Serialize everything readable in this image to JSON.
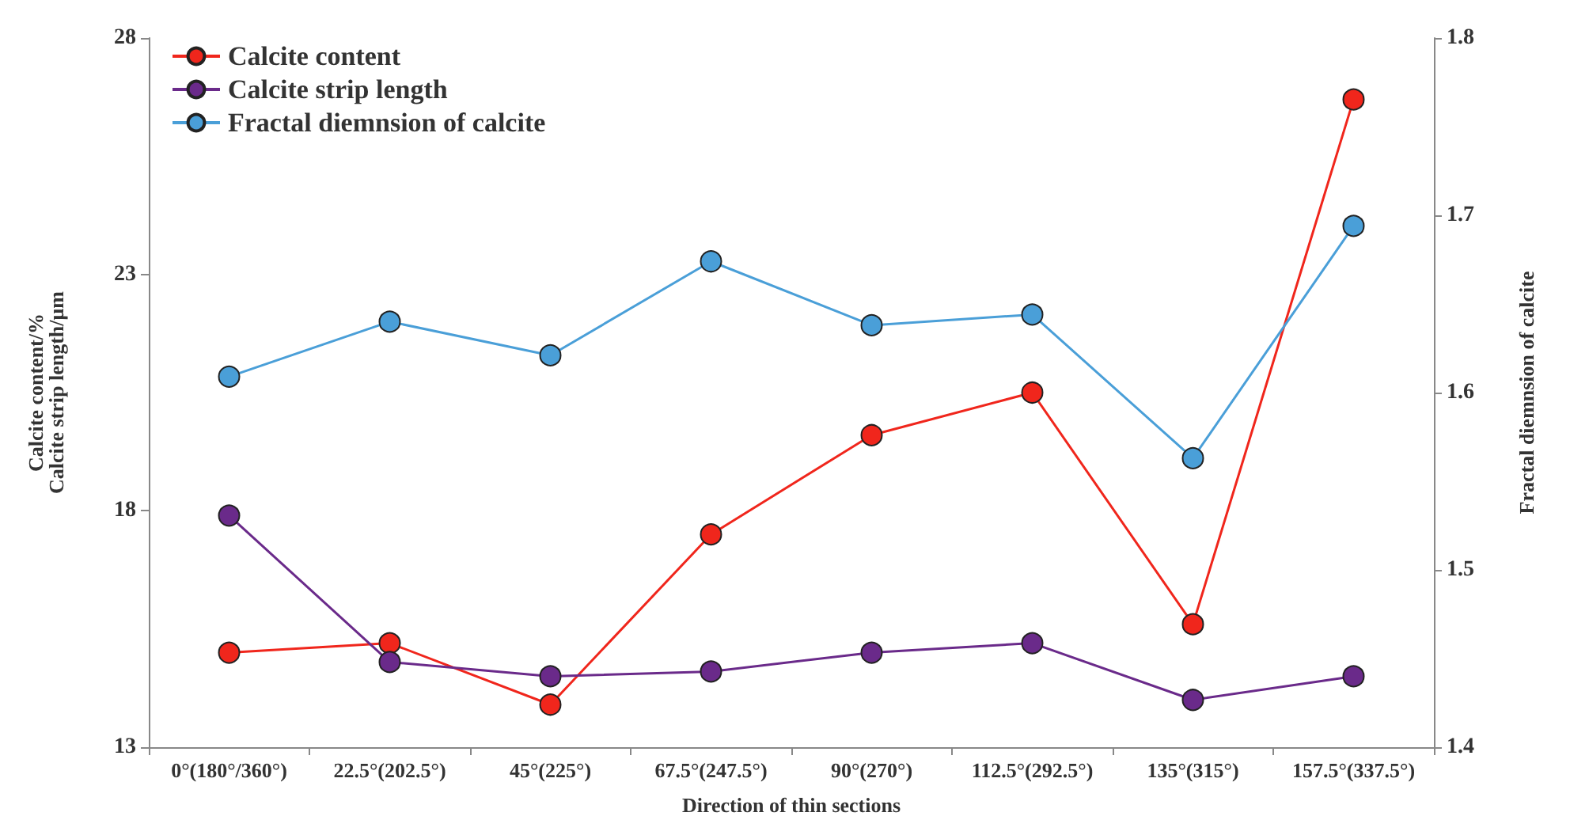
{
  "chart_data": {
    "type": "line",
    "xlabel": "Direction of thin sections",
    "ylabel": "Calcite content/%\nCalcite strip length/μm",
    "y2label": "Fractal diemnsion of calcite",
    "categories": [
      "0°(180°/360°)",
      "22.5°(202.5°)",
      "45°(225°)",
      "67.5°(247.5°)",
      "90°(270°)",
      "112.5°(292.5°)",
      "135°(315°)",
      "157.5°(337.5°)"
    ],
    "series": [
      {
        "name": "Calcite content",
        "color": "#f0261c",
        "values": [
          15.0,
          15.2,
          13.9,
          17.5,
          19.6,
          20.5,
          15.6,
          26.7
        ]
      },
      {
        "name": "Calcite strip length",
        "color": "#6a2a8a",
        "values": [
          17.9,
          14.8,
          14.5,
          14.6,
          15.0,
          15.2,
          14.0,
          14.5
        ]
      },
      {
        "name": "Fractal diemnsion of calcite",
        "color": "#4a9fd8",
        "axis": "y2",
        "values": [
          1.609,
          1.64,
          1.621,
          1.674,
          1.638,
          1.644,
          1.563,
          1.694
        ]
      }
    ],
    "ylim": [
      13,
      28
    ],
    "yticks": [
      13,
      18,
      23,
      28
    ],
    "y2lim": [
      1.4,
      1.8
    ],
    "y2ticks": [
      1.4,
      1.5,
      1.6,
      1.7,
      1.8
    ],
    "legend": "top left",
    "grid": false,
    "marker": "circle",
    "line_style": "solid"
  }
}
